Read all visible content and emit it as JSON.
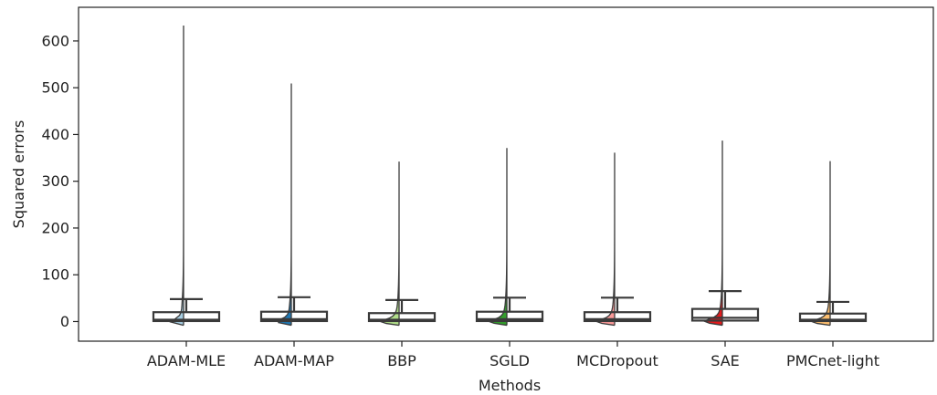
{
  "chart_data": {
    "type": "violin+box",
    "xlabel": "Methods",
    "ylabel": "Squared errors",
    "ylim": [
      -42,
      672
    ],
    "yticks": [
      0,
      100,
      200,
      300,
      400,
      500,
      600
    ],
    "grid": false,
    "legend": "none",
    "categories": [
      "ADAM-MLE",
      "ADAM-MAP",
      "BBP",
      "SGLD",
      "MCDropout",
      "SAE",
      "PMCnet-light"
    ],
    "series": [
      {
        "max": 633,
        "q1": 1,
        "median": 4,
        "q3": 20,
        "whisker_high": 48,
        "color": "#a6cee3"
      },
      {
        "max": 509,
        "q1": 1,
        "median": 5,
        "q3": 21,
        "whisker_high": 52,
        "color": "#1f78b4"
      },
      {
        "max": 342,
        "q1": 1,
        "median": 4,
        "q3": 18,
        "whisker_high": 46,
        "color": "#b2df8a"
      },
      {
        "max": 371,
        "q1": 1,
        "median": 5,
        "q3": 21,
        "whisker_high": 51,
        "color": "#33a02c"
      },
      {
        "max": 361,
        "q1": 1,
        "median": 5,
        "q3": 20,
        "whisker_high": 51,
        "color": "#fb9a99"
      },
      {
        "max": 387,
        "q1": 2,
        "median": 8,
        "q3": 27,
        "whisker_high": 65,
        "color": "#e31a1c"
      },
      {
        "max": 343,
        "q1": 1,
        "median": 4,
        "q3": 17,
        "whisker_high": 42,
        "color": "#fdbf6f"
      }
    ]
  }
}
